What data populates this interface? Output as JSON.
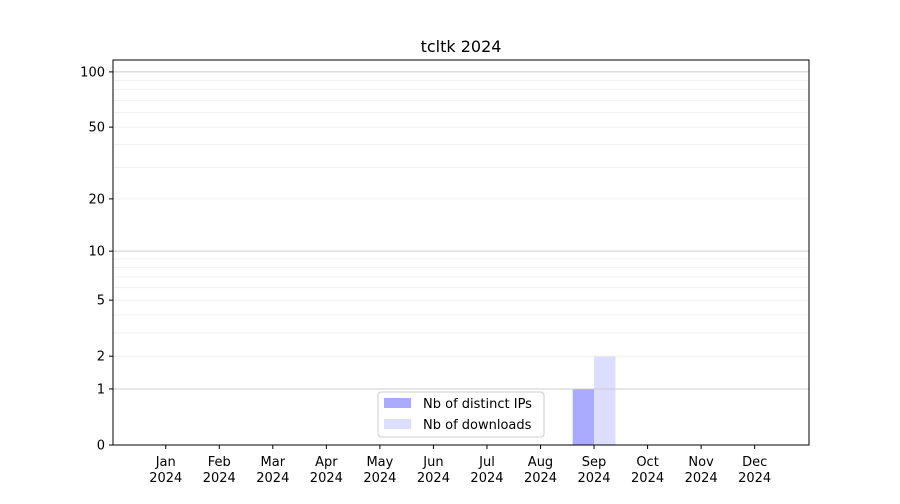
{
  "chart_data": {
    "type": "bar",
    "title": "tcltk 2024",
    "xlabel": "",
    "ylabel": "",
    "y_scale": "log(1+y)",
    "ylim": [
      0,
      116
    ],
    "yticks": [
      0,
      1,
      2,
      5,
      10,
      20,
      50,
      100
    ],
    "grid": true,
    "legend_placement": "lower-center",
    "categories": [
      "Jan\n2024",
      "Feb\n2024",
      "Mar\n2024",
      "Apr\n2024",
      "May\n2024",
      "Jun\n2024",
      "Jul\n2024",
      "Aug\n2024",
      "Sep\n2024",
      "Oct\n2024",
      "Nov\n2024",
      "Dec\n2024"
    ],
    "series": [
      {
        "name": "Nb of distinct IPs",
        "color": "#aaaaff",
        "values": [
          0,
          0,
          0,
          0,
          0,
          0,
          0,
          0,
          1,
          0,
          0,
          0
        ]
      },
      {
        "name": "Nb of downloads",
        "color": "#ddddff",
        "values": [
          0,
          0,
          0,
          0,
          0,
          0,
          0,
          0,
          2,
          0,
          0,
          0
        ]
      }
    ]
  }
}
